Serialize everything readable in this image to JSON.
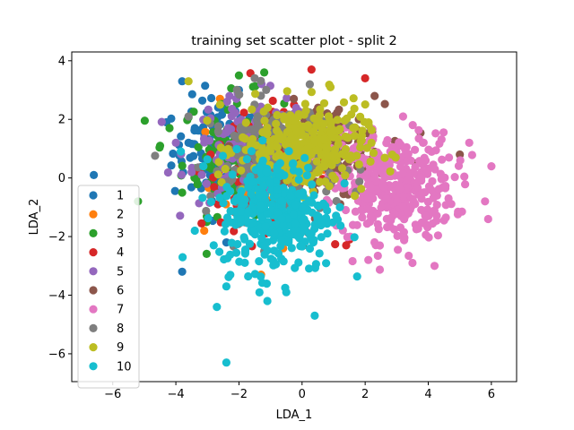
{
  "chart_data": {
    "type": "scatter",
    "title": "training set scatter plot - split 2",
    "xlabel": "LDA_1",
    "ylabel": "LDA_2",
    "xlim": [
      -7.3,
      6.8
    ],
    "ylim": [
      -6.95,
      4.3
    ],
    "xticks": [
      -6,
      -4,
      -2,
      0,
      2,
      4,
      6
    ],
    "yticks": [
      -6,
      -4,
      -2,
      0,
      2,
      4
    ],
    "grid": false,
    "legend_position": "lower-left",
    "series": [
      {
        "name": "1",
        "color": "#1f77b4",
        "cx": -2.6,
        "cy": 0.9,
        "sx": 0.75,
        "sy": 0.9,
        "n": 110,
        "points": [
          [
            -6.6,
            0.1
          ],
          [
            -3.8,
            3.3
          ],
          [
            -3.8,
            -3.2
          ],
          [
            -4.3,
            1.9
          ],
          [
            -3.4,
            1.7
          ],
          [
            -3.6,
            1.2
          ],
          [
            -2.0,
            3.0
          ],
          [
            -2.4,
            -2.2
          ]
        ]
      },
      {
        "name": "2",
        "color": "#ff7f0e",
        "cx": -1.0,
        "cy": 0.5,
        "sx": 0.9,
        "sy": 1.0,
        "n": 60,
        "points": [
          [
            -2.6,
            2.7
          ],
          [
            -1.3,
            -3.3
          ],
          [
            -3.1,
            -1.8
          ],
          [
            1.7,
            1.0
          ],
          [
            -0.6,
            -2.4
          ]
        ]
      },
      {
        "name": "3",
        "color": "#2ca02c",
        "cx": -2.2,
        "cy": 0.8,
        "sx": 0.8,
        "sy": 1.0,
        "n": 110,
        "points": [
          [
            -4.5,
            1.1
          ],
          [
            -5.2,
            -0.8
          ],
          [
            -2.0,
            3.5
          ],
          [
            -1.2,
            3.6
          ],
          [
            -4.2,
            1.7
          ],
          [
            -3.8,
            -0.5
          ]
        ]
      },
      {
        "name": "4",
        "color": "#d62728",
        "cx": -1.2,
        "cy": 0.3,
        "sx": 1.0,
        "sy": 1.0,
        "n": 110,
        "points": [
          [
            0.3,
            3.7
          ],
          [
            2.0,
            3.4
          ],
          [
            1.5,
            -2.1
          ],
          [
            1.4,
            -2.3
          ],
          [
            -2.9,
            0.8
          ]
        ]
      },
      {
        "name": "5",
        "color": "#9467bd",
        "cx": -1.6,
        "cy": 1.0,
        "sx": 1.0,
        "sy": 0.9,
        "n": 130,
        "points": [
          [
            -4.0,
            1.2
          ],
          [
            -3.5,
            0.2
          ],
          [
            0.7,
            1.5
          ],
          [
            -2.3,
            2.8
          ]
        ]
      },
      {
        "name": "6",
        "color": "#8c564b",
        "cx": 0.6,
        "cy": 0.9,
        "sx": 1.0,
        "sy": 0.8,
        "n": 170,
        "points": [
          [
            2.3,
            2.8
          ],
          [
            5.0,
            0.8
          ],
          [
            3.6,
            0.5
          ],
          [
            1.8,
            2.0
          ]
        ]
      },
      {
        "name": "7",
        "color": "#e377c2",
        "cx": 2.9,
        "cy": -0.3,
        "sx": 0.95,
        "sy": 0.9,
        "n": 380,
        "points": [
          [
            6.0,
            0.4
          ],
          [
            5.9,
            -1.4
          ],
          [
            5.8,
            -0.8
          ],
          [
            3.5,
            -2.9
          ],
          [
            4.2,
            -3.0
          ],
          [
            3.2,
            2.1
          ],
          [
            5.3,
            1.2
          ],
          [
            2.1,
            -2.8
          ]
        ]
      },
      {
        "name": "8",
        "color": "#7f7f7f",
        "cx": -0.9,
        "cy": 0.6,
        "sx": 1.0,
        "sy": 1.0,
        "n": 200,
        "points": [
          [
            -3.6,
            2.1
          ],
          [
            -1.5,
            3.4
          ],
          [
            -1.2,
            -2.5
          ],
          [
            1.5,
            1.8
          ]
        ]
      },
      {
        "name": "9",
        "color": "#bcbd22",
        "cx": 0.0,
        "cy": 1.0,
        "sx": 1.0,
        "sy": 0.75,
        "n": 300,
        "points": [
          [
            -3.6,
            3.3
          ],
          [
            0.9,
            3.1
          ],
          [
            -2.6,
            2.5
          ],
          [
            2.2,
            1.2
          ],
          [
            -1.9,
            -0.4
          ]
        ]
      },
      {
        "name": "10",
        "color": "#17becf",
        "cx": -0.8,
        "cy": -1.2,
        "sx": 0.9,
        "sy": 1.0,
        "n": 340,
        "points": [
          [
            -2.4,
            -6.3
          ],
          [
            -2.7,
            -4.4
          ],
          [
            0.4,
            -4.7
          ],
          [
            -1.1,
            -4.2
          ],
          [
            -0.5,
            -3.9
          ],
          [
            -2.4,
            -3.7
          ],
          [
            -2.8,
            -2.3
          ],
          [
            -3.4,
            -1.8
          ]
        ]
      }
    ]
  }
}
